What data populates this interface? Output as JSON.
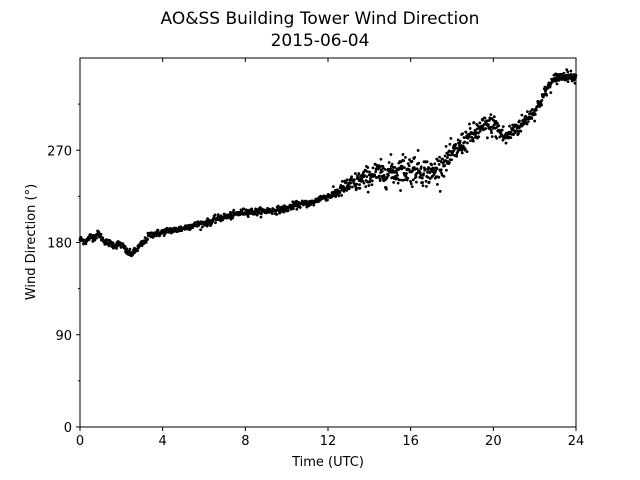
{
  "chart_data": {
    "type": "scatter",
    "title": "AO&SS Building Tower Wind Direction",
    "subtitle": "2015-06-04",
    "xlabel": "Time (UTC)",
    "ylabel": "Wind Direction (°)",
    "xlim": [
      0,
      24
    ],
    "ylim": [
      0,
      360
    ],
    "xticks": [
      0,
      4,
      8,
      12,
      16,
      20,
      24
    ],
    "yticks": [
      0,
      90,
      180,
      270
    ],
    "yticks_minor": [
      45,
      135,
      225,
      315
    ],
    "grid": false,
    "marker_color": "#000000",
    "series": [
      {
        "points": [
          [
            0.0,
            183
          ],
          [
            0.3,
            181
          ],
          [
            0.5,
            186
          ],
          [
            0.7,
            185
          ],
          [
            0.9,
            189
          ],
          [
            1.1,
            183
          ],
          [
            1.3,
            180
          ],
          [
            1.5,
            179
          ],
          [
            1.7,
            177
          ],
          [
            1.9,
            179
          ],
          [
            2.1,
            176
          ],
          [
            2.3,
            170
          ],
          [
            2.5,
            169
          ],
          [
            2.7,
            172
          ],
          [
            2.9,
            177
          ],
          [
            3.1,
            180
          ],
          [
            3.3,
            186
          ],
          [
            3.5,
            188
          ],
          [
            3.7,
            189
          ],
          [
            3.9,
            189
          ],
          [
            4.0,
            190
          ],
          [
            4.3,
            192
          ],
          [
            4.6,
            192
          ],
          [
            5.0,
            194
          ],
          [
            5.3,
            196
          ],
          [
            5.6,
            197
          ],
          [
            6.0,
            199
          ],
          [
            6.3,
            200
          ],
          [
            6.6,
            203
          ],
          [
            7.0,
            205
          ],
          [
            7.3,
            206
          ],
          [
            7.6,
            208
          ],
          [
            8.0,
            210
          ],
          [
            8.3,
            210
          ],
          [
            8.6,
            210
          ],
          [
            9.0,
            211
          ],
          [
            9.3,
            211
          ],
          [
            9.6,
            212
          ],
          [
            10.0,
            213
          ],
          [
            10.3,
            216
          ],
          [
            10.6,
            217
          ],
          [
            11.0,
            218
          ],
          [
            11.3,
            219
          ],
          [
            11.6,
            223
          ],
          [
            12.0,
            225
          ],
          [
            12.3,
            227
          ],
          [
            12.6,
            231
          ],
          [
            13.0,
            236
          ],
          [
            13.3,
            238
          ],
          [
            13.6,
            241
          ],
          [
            14.0,
            244
          ],
          [
            14.3,
            248
          ],
          [
            14.6,
            246
          ],
          [
            15.0,
            250
          ],
          [
            15.3,
            249
          ],
          [
            15.6,
            252
          ],
          [
            16.0,
            251
          ],
          [
            16.3,
            253
          ],
          [
            16.6,
            250
          ],
          [
            17.0,
            247
          ],
          [
            17.3,
            252
          ],
          [
            17.6,
            258
          ],
          [
            18.0,
            265
          ],
          [
            18.3,
            272
          ],
          [
            18.6,
            279
          ],
          [
            19.0,
            285
          ],
          [
            19.3,
            289
          ],
          [
            19.6,
            293
          ],
          [
            20.0,
            295
          ],
          [
            20.3,
            288
          ],
          [
            20.6,
            282
          ],
          [
            21.0,
            290
          ],
          [
            21.3,
            294
          ],
          [
            21.6,
            301
          ],
          [
            22.0,
            308
          ],
          [
            22.3,
            318
          ],
          [
            22.6,
            330
          ],
          [
            23.0,
            340
          ],
          [
            23.3,
            342
          ],
          [
            23.6,
            343
          ],
          [
            24.0,
            341
          ]
        ],
        "scatter_spread": [
          [
            0,
            3
          ],
          [
            12,
            3
          ],
          [
            13,
            8
          ],
          [
            16,
            14
          ],
          [
            18,
            10
          ],
          [
            20,
            10
          ],
          [
            22,
            6
          ],
          [
            24,
            4
          ]
        ]
      }
    ]
  }
}
